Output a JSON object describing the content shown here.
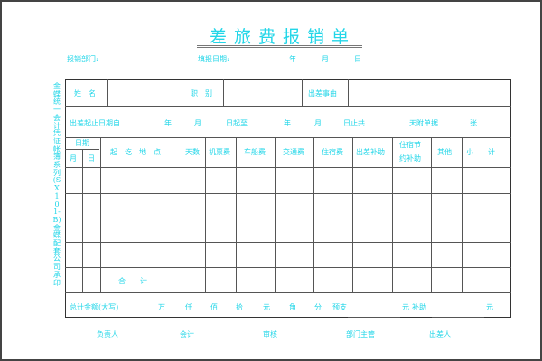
{
  "title": "差旅费报销单",
  "side_text": "金蝶统一会计凭证帐簿系列(SX101-B)金蝶配套公司承印",
  "header": {
    "dept": "报销部门:",
    "fill_date": "填报日期:",
    "year": "年",
    "month": "月",
    "day": "日"
  },
  "row1": {
    "name": "姓　名",
    "rank": "职　别",
    "reason": "出差事由"
  },
  "row2": {
    "from": "出差起止日期自",
    "y1": "年",
    "m1": "月",
    "to": "日起至",
    "y2": "年",
    "m2": "月",
    "total": "日止共",
    "attach": "天附单据",
    "sheets": "张"
  },
  "columns": {
    "date": "日期",
    "month": "月",
    "day": "日",
    "place": "起　讫　地　点",
    "days": "天数",
    "air": "机票费",
    "car": "车船费",
    "transport": "交通费",
    "hotel": "住宿费",
    "allowance": "出差补助",
    "no_hotel_1": "住宿节",
    "no_hotel_2": "约补助",
    "other": "其他",
    "subtotal": "小　　计"
  },
  "sum_label": "合　　计",
  "total_row": {
    "label": "总计金额(大写)",
    "wan": "万",
    "qian": "仟",
    "bai": "佰",
    "shi": "拾",
    "yuan": "元",
    "jiao": "角",
    "fen": "分",
    "advance": "预支",
    "yuan2": "元",
    "refund": "补助",
    "yuan3": "元"
  },
  "signatures": [
    "负责人",
    "会计",
    "审核",
    "部门主管",
    "出差人"
  ]
}
